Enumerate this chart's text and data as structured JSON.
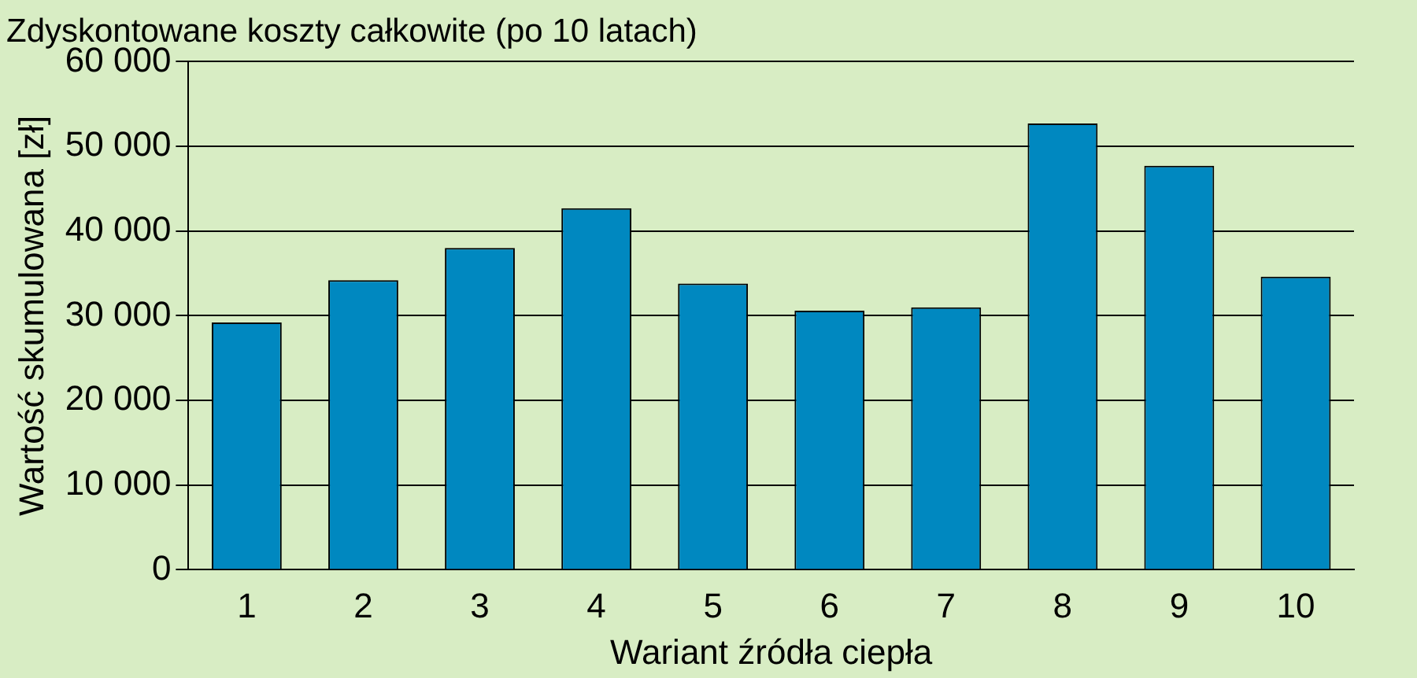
{
  "chart_data": {
    "type": "bar",
    "title": "Zdyskontowane koszty całkowite (po 10 latach)",
    "xlabel": "Wariant źródła ciepła",
    "ylabel": "Wartość skumulowana [zł]",
    "categories": [
      "1",
      "2",
      "3",
      "4",
      "5",
      "6",
      "7",
      "8",
      "9",
      "10"
    ],
    "values": [
      29200,
      34200,
      38000,
      42700,
      33800,
      30600,
      31000,
      52700,
      47700,
      34600
    ],
    "color": "#0088c0",
    "ylim": [
      0,
      60000
    ],
    "yticks": [
      {
        "value": 0,
        "label": "0"
      },
      {
        "value": 10000,
        "label": "10 000"
      },
      {
        "value": 20000,
        "label": "20 000"
      },
      {
        "value": 30000,
        "label": "30 000"
      },
      {
        "value": 40000,
        "label": "40 000"
      },
      {
        "value": 50000,
        "label": "50 000"
      },
      {
        "value": 60000,
        "label": "60 000"
      }
    ],
    "grid": "y"
  }
}
